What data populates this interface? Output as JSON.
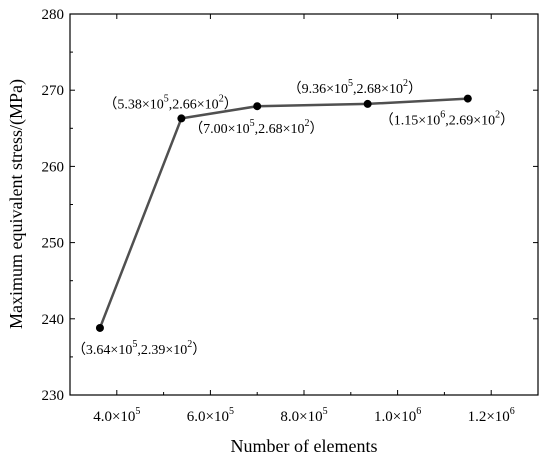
{
  "chart_data": {
    "type": "line",
    "xlabel": "Number of elements",
    "ylabel": "Maximum equivalent stress/(MPa)",
    "xlim": [
      300000,
      1300000
    ],
    "ylim": [
      230,
      280
    ],
    "x_ticks": [
      400000,
      600000,
      800000,
      1000000,
      1200000
    ],
    "x_tick_labels": [
      {
        "mant": "4.0×10",
        "exp": "5"
      },
      {
        "mant": "6.0×10",
        "exp": "5"
      },
      {
        "mant": "8.0×10",
        "exp": "5"
      },
      {
        "mant": "1.0×10",
        "exp": "6"
      },
      {
        "mant": "1.2×10",
        "exp": "6"
      }
    ],
    "y_ticks": [
      230,
      240,
      250,
      260,
      270,
      280
    ],
    "y_tick_labels": [
      "230",
      "240",
      "250",
      "260",
      "270",
      "280"
    ],
    "grid": false,
    "line_color": "#505050",
    "marker_color": "#000000",
    "series": [
      {
        "x": [
          364000,
          538000,
          700000,
          936000,
          1150000
        ],
        "y": [
          238.8,
          266.3,
          267.9,
          268.2,
          268.9
        ]
      }
    ],
    "annotations": [
      {
        "x": 364000,
        "y": 238.8,
        "anchor": "below",
        "parts": [
          "（3.64×10",
          "5",
          ",2.39×10",
          "2",
          "）"
        ]
      },
      {
        "x": 538000,
        "y": 266.3,
        "anchor": "above-left",
        "parts": [
          "（5.38×10",
          "5",
          ",2.66×10",
          "2",
          "）"
        ]
      },
      {
        "x": 700000,
        "y": 267.9,
        "anchor": "below-right",
        "parts": [
          "（7.00×10",
          "5",
          ",2.68×10",
          "2",
          "）"
        ]
      },
      {
        "x": 936000,
        "y": 268.2,
        "anchor": "above",
        "parts": [
          "（9.36×10",
          "5",
          ",2.68×10",
          "2",
          "）"
        ]
      },
      {
        "x": 1150000,
        "y": 268.9,
        "anchor": "below-left",
        "parts": [
          "（1.15×10",
          "6",
          ",2.69×10",
          "2",
          "）"
        ]
      }
    ]
  }
}
